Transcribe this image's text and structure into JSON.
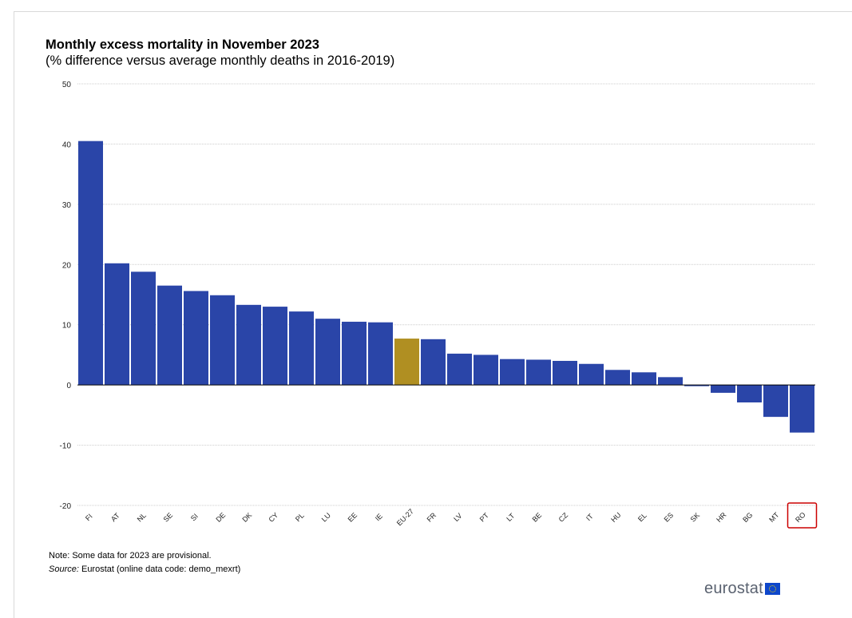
{
  "header": {
    "title": "Monthly excess mortality in November 2023",
    "subtitle": "(% difference versus average monthly deaths in 2016-2019)"
  },
  "footer": {
    "note": "Note: Some data for 2023 are provisional.",
    "source_label": "Source:",
    "source_text": " Eurostat (online data code: demo_mexrt)",
    "logo_text": "eurostat"
  },
  "colors": {
    "bar": "#2a45a8",
    "highlight_bar": "#b08f22",
    "grid": "#cccccc",
    "highlight_box": "#cc0000"
  },
  "chart_data": {
    "type": "bar",
    "title": "Monthly excess mortality in November 2023",
    "subtitle": "(% difference versus average monthly deaths in 2016-2019)",
    "categories": [
      "FI",
      "AT",
      "NL",
      "SE",
      "SI",
      "DE",
      "DK",
      "CY",
      "PL",
      "LU",
      "EE",
      "IE",
      "EU-27",
      "FR",
      "LV",
      "PT",
      "LT",
      "BE",
      "CZ",
      "IT",
      "HU",
      "EL",
      "ES",
      "SK",
      "HR",
      "BG",
      "MT",
      "RO"
    ],
    "values": [
      40.5,
      20.2,
      18.8,
      16.5,
      15.6,
      14.9,
      13.3,
      13.0,
      12.2,
      11.0,
      10.5,
      10.4,
      7.7,
      7.6,
      5.2,
      5.0,
      4.3,
      4.2,
      4.0,
      3.5,
      2.5,
      2.1,
      1.3,
      -0.2,
      -1.3,
      -2.9,
      -5.3,
      -7.9
    ],
    "highlight": "EU-27",
    "boxed_category": "RO",
    "ylim": [
      -20,
      50
    ],
    "yticks": [
      50,
      40,
      30,
      20,
      10,
      0,
      -10,
      -20
    ],
    "xlabel": "",
    "ylabel": "",
    "grid": true,
    "legend": "none"
  }
}
